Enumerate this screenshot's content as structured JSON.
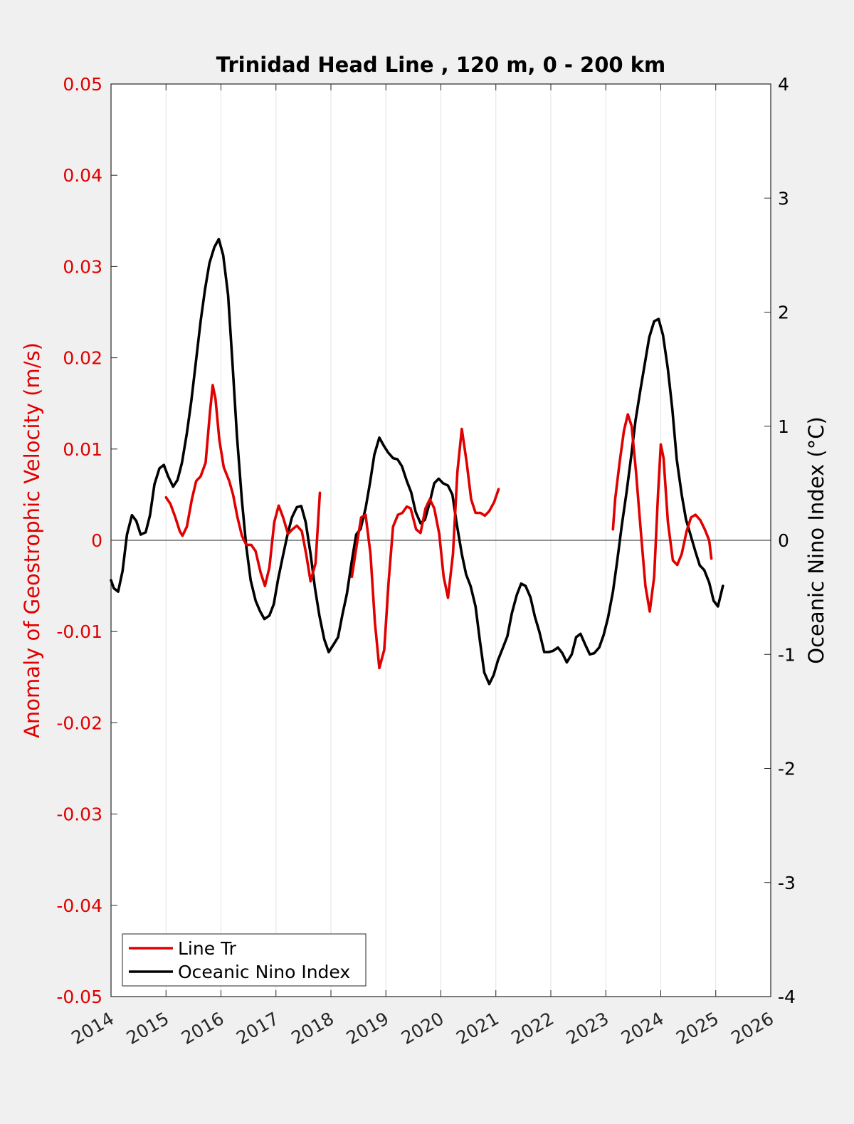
{
  "chart_data": {
    "type": "line",
    "title": "Trinidad Head Line , 120 m, 0 - 200 km",
    "xlabel": "",
    "ylabel_left": "Anomaly of Geostrophic Velocity (m/s)",
    "ylabel_right": "Oceanic Nino Index (°C)",
    "xlim": [
      2014,
      2026
    ],
    "ylim_left": [
      -0.05,
      0.05
    ],
    "ylim_right": [
      -4,
      4
    ],
    "xticks": [
      "2014",
      "2015",
      "2016",
      "2017",
      "2018",
      "2019",
      "2020",
      "2021",
      "2022",
      "2023",
      "2024",
      "2025",
      "2026"
    ],
    "yticks_left": [
      "0.05",
      "0.04",
      "0.03",
      "0.02",
      "0.01",
      "0",
      "-0.01",
      "-0.02",
      "-0.03",
      "-0.04",
      "-0.05"
    ],
    "yticks_right": [
      "4",
      "3",
      "2",
      "1",
      "0",
      "-1",
      "-2",
      "-3",
      "-4"
    ],
    "grid": "x-only",
    "legend_position": "bottom-left",
    "colors": {
      "line_tr": "#e00000",
      "oni": "#000000",
      "left_axis": "#e00000",
      "right_axis": "#000000"
    },
    "series": [
      {
        "name": "Line Tr",
        "axis": "left",
        "segments": [
          [
            [
              2015.0,
              0.0047
            ],
            [
              2015.08,
              0.004
            ],
            [
              2015.17,
              0.0025
            ],
            [
              2015.25,
              0.001
            ],
            [
              2015.3,
              0.0005
            ],
            [
              2015.38,
              0.0015
            ],
            [
              2015.47,
              0.0045
            ],
            [
              2015.55,
              0.0065
            ],
            [
              2015.63,
              0.007
            ],
            [
              2015.72,
              0.0085
            ],
            [
              2015.8,
              0.014
            ],
            [
              2015.85,
              0.017
            ],
            [
              2015.9,
              0.0155
            ],
            [
              2015.97,
              0.011
            ],
            [
              2016.05,
              0.008
            ],
            [
              2016.15,
              0.0065
            ],
            [
              2016.22,
              0.005
            ],
            [
              2016.3,
              0.0025
            ],
            [
              2016.38,
              0.0005
            ],
            [
              2016.46,
              -0.0005
            ],
            [
              2016.55,
              -0.0005
            ],
            [
              2016.63,
              -0.0012
            ],
            [
              2016.72,
              -0.0035
            ],
            [
              2016.8,
              -0.005
            ],
            [
              2016.88,
              -0.003
            ],
            [
              2016.97,
              0.002
            ],
            [
              2017.05,
              0.0038
            ],
            [
              2017.13,
              0.0025
            ],
            [
              2017.22,
              0.0007
            ],
            [
              2017.3,
              0.0012
            ],
            [
              2017.38,
              0.0016
            ],
            [
              2017.47,
              0.001
            ],
            [
              2017.55,
              -0.0015
            ],
            [
              2017.63,
              -0.0045
            ],
            [
              2017.72,
              -0.0025
            ],
            [
              2017.8,
              0.0052
            ]
          ],
          [
            [
              2018.38,
              -0.004
            ],
            [
              2018.47,
              -0.0005
            ],
            [
              2018.55,
              0.0025
            ],
            [
              2018.63,
              0.0028
            ],
            [
              2018.72,
              -0.0015
            ],
            [
              2018.8,
              -0.009
            ],
            [
              2018.88,
              -0.014
            ],
            [
              2018.97,
              -0.012
            ],
            [
              2019.05,
              -0.0045
            ],
            [
              2019.13,
              0.0015
            ],
            [
              2019.22,
              0.0028
            ],
            [
              2019.3,
              0.003
            ],
            [
              2019.38,
              0.0037
            ],
            [
              2019.45,
              0.0035
            ],
            [
              2019.55,
              0.0012
            ],
            [
              2019.63,
              0.0008
            ],
            [
              2019.72,
              0.0035
            ],
            [
              2019.8,
              0.0045
            ],
            [
              2019.88,
              0.0035
            ],
            [
              2019.97,
              0.0007
            ],
            [
              2020.05,
              -0.004
            ],
            [
              2020.13,
              -0.0063
            ],
            [
              2020.22,
              -0.0015
            ],
            [
              2020.3,
              0.0075
            ],
            [
              2020.38,
              0.0122
            ],
            [
              2020.47,
              0.0085
            ],
            [
              2020.55,
              0.0045
            ],
            [
              2020.63,
              0.003
            ],
            [
              2020.72,
              0.003
            ],
            [
              2020.8,
              0.0027
            ],
            [
              2020.88,
              0.0032
            ],
            [
              2020.97,
              0.0042
            ],
            [
              2021.05,
              0.0056
            ]
          ],
          [
            [
              2023.13,
              0.0012
            ],
            [
              2023.17,
              0.0045
            ],
            [
              2023.25,
              0.0085
            ],
            [
              2023.33,
              0.012
            ],
            [
              2023.4,
              0.0138
            ],
            [
              2023.47,
              0.0125
            ],
            [
              2023.55,
              0.0075
            ],
            [
              2023.63,
              0.0015
            ],
            [
              2023.72,
              -0.005
            ],
            [
              2023.8,
              -0.0078
            ],
            [
              2023.88,
              -0.004
            ],
            [
              2023.95,
              0.005
            ],
            [
              2024.0,
              0.0105
            ],
            [
              2024.05,
              0.009
            ],
            [
              2024.13,
              0.002
            ],
            [
              2024.22,
              -0.0022
            ],
            [
              2024.3,
              -0.0027
            ],
            [
              2024.38,
              -0.0015
            ],
            [
              2024.47,
              0.001
            ],
            [
              2024.55,
              0.0025
            ],
            [
              2024.63,
              0.0028
            ],
            [
              2024.72,
              0.0022
            ],
            [
              2024.8,
              0.0012
            ],
            [
              2024.88,
              0.0
            ],
            [
              2024.92,
              -0.002
            ]
          ]
        ]
      },
      {
        "name": "Oceanic Nino Index",
        "axis": "right",
        "segments": [
          [
            [
              2014.0,
              -0.35
            ],
            [
              2014.05,
              -0.42
            ],
            [
              2014.13,
              -0.45
            ],
            [
              2014.21,
              -0.27
            ],
            [
              2014.29,
              0.05
            ],
            [
              2014.38,
              0.22
            ],
            [
              2014.46,
              0.17
            ],
            [
              2014.54,
              0.05
            ],
            [
              2014.63,
              0.07
            ],
            [
              2014.71,
              0.22
            ],
            [
              2014.79,
              0.49
            ],
            [
              2014.88,
              0.63
            ],
            [
              2014.96,
              0.66
            ],
            [
              2015.04,
              0.56
            ],
            [
              2015.13,
              0.47
            ],
            [
              2015.21,
              0.53
            ],
            [
              2015.29,
              0.68
            ],
            [
              2015.38,
              0.94
            ],
            [
              2015.46,
              1.22
            ],
            [
              2015.54,
              1.55
            ],
            [
              2015.63,
              1.92
            ],
            [
              2015.71,
              2.2
            ],
            [
              2015.79,
              2.43
            ],
            [
              2015.88,
              2.57
            ],
            [
              2015.96,
              2.64
            ],
            [
              2016.04,
              2.5
            ],
            [
              2016.13,
              2.15
            ],
            [
              2016.21,
              1.55
            ],
            [
              2016.29,
              0.92
            ],
            [
              2016.38,
              0.35
            ],
            [
              2016.46,
              -0.05
            ],
            [
              2016.54,
              -0.35
            ],
            [
              2016.63,
              -0.53
            ],
            [
              2016.71,
              -0.62
            ],
            [
              2016.79,
              -0.69
            ],
            [
              2016.88,
              -0.66
            ],
            [
              2016.96,
              -0.56
            ],
            [
              2017.04,
              -0.34
            ],
            [
              2017.13,
              -0.13
            ],
            [
              2017.21,
              0.05
            ],
            [
              2017.29,
              0.2
            ],
            [
              2017.38,
              0.29
            ],
            [
              2017.46,
              0.3
            ],
            [
              2017.54,
              0.16
            ],
            [
              2017.63,
              -0.12
            ],
            [
              2017.71,
              -0.42
            ],
            [
              2017.79,
              -0.66
            ],
            [
              2017.88,
              -0.87
            ],
            [
              2017.96,
              -0.98
            ],
            [
              2018.04,
              -0.92
            ],
            [
              2018.13,
              -0.85
            ],
            [
              2018.21,
              -0.65
            ],
            [
              2018.29,
              -0.47
            ],
            [
              2018.38,
              -0.18
            ],
            [
              2018.46,
              0.05
            ],
            [
              2018.54,
              0.1
            ],
            [
              2018.63,
              0.28
            ],
            [
              2018.71,
              0.5
            ],
            [
              2018.79,
              0.75
            ],
            [
              2018.88,
              0.9
            ],
            [
              2018.96,
              0.83
            ],
            [
              2019.04,
              0.77
            ],
            [
              2019.13,
              0.72
            ],
            [
              2019.21,
              0.71
            ],
            [
              2019.29,
              0.65
            ],
            [
              2019.38,
              0.52
            ],
            [
              2019.46,
              0.42
            ],
            [
              2019.54,
              0.25
            ],
            [
              2019.63,
              0.15
            ],
            [
              2019.71,
              0.18
            ],
            [
              2019.79,
              0.32
            ],
            [
              2019.88,
              0.5
            ],
            [
              2019.96,
              0.54
            ],
            [
              2020.04,
              0.5
            ],
            [
              2020.13,
              0.48
            ],
            [
              2020.21,
              0.4
            ],
            [
              2020.29,
              0.14
            ],
            [
              2020.38,
              -0.12
            ],
            [
              2020.46,
              -0.3
            ],
            [
              2020.54,
              -0.4
            ],
            [
              2020.63,
              -0.58
            ],
            [
              2020.71,
              -0.88
            ],
            [
              2020.79,
              -1.16
            ],
            [
              2020.88,
              -1.26
            ],
            [
              2020.96,
              -1.18
            ],
            [
              2021.04,
              -1.05
            ],
            [
              2021.13,
              -0.94
            ],
            [
              2021.21,
              -0.84
            ],
            [
              2021.29,
              -0.64
            ],
            [
              2021.38,
              -0.48
            ],
            [
              2021.46,
              -0.38
            ],
            [
              2021.54,
              -0.4
            ],
            [
              2021.63,
              -0.5
            ],
            [
              2021.71,
              -0.67
            ],
            [
              2021.79,
              -0.8
            ],
            [
              2021.88,
              -0.98
            ],
            [
              2021.96,
              -0.98
            ],
            [
              2022.04,
              -0.97
            ],
            [
              2022.13,
              -0.94
            ],
            [
              2022.21,
              -0.99
            ],
            [
              2022.29,
              -1.07
            ],
            [
              2022.38,
              -1.0
            ],
            [
              2022.46,
              -0.85
            ],
            [
              2022.54,
              -0.82
            ],
            [
              2022.63,
              -0.92
            ],
            [
              2022.71,
              -1.0
            ],
            [
              2022.79,
              -0.99
            ],
            [
              2022.88,
              -0.94
            ],
            [
              2022.96,
              -0.83
            ],
            [
              2023.04,
              -0.68
            ],
            [
              2023.13,
              -0.45
            ],
            [
              2023.21,
              -0.17
            ],
            [
              2023.29,
              0.13
            ],
            [
              2023.38,
              0.43
            ],
            [
              2023.46,
              0.73
            ],
            [
              2023.54,
              1.05
            ],
            [
              2023.63,
              1.32
            ],
            [
              2023.71,
              1.55
            ],
            [
              2023.79,
              1.78
            ],
            [
              2023.88,
              1.92
            ],
            [
              2023.96,
              1.94
            ],
            [
              2024.04,
              1.8
            ],
            [
              2024.13,
              1.5
            ],
            [
              2024.21,
              1.15
            ],
            [
              2024.29,
              0.71
            ],
            [
              2024.38,
              0.4
            ],
            [
              2024.46,
              0.18
            ],
            [
              2024.54,
              0.05
            ],
            [
              2024.63,
              -0.1
            ],
            [
              2024.71,
              -0.22
            ],
            [
              2024.79,
              -0.26
            ],
            [
              2024.88,
              -0.37
            ],
            [
              2024.96,
              -0.53
            ],
            [
              2025.04,
              -0.58
            ],
            [
              2025.13,
              -0.4
            ]
          ]
        ]
      }
    ]
  }
}
